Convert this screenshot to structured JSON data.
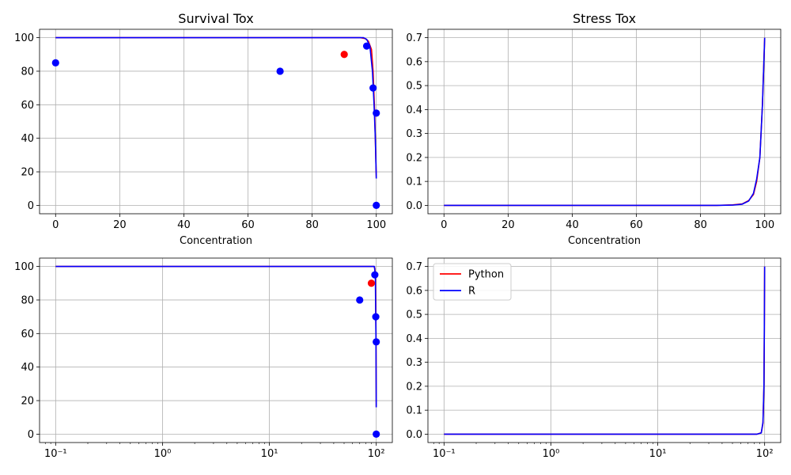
{
  "chart_data": [
    {
      "type": "scatter",
      "title": "Survival Tox",
      "xlabel": "Concentration",
      "ylabel": "",
      "xscale": "linear",
      "xlim": [
        -5,
        105
      ],
      "ylim": [
        -5,
        105
      ],
      "xticks": [
        0,
        20,
        40,
        60,
        80,
        100
      ],
      "xtick_labels": [
        "0",
        "20",
        "40",
        "60",
        "80",
        "100"
      ],
      "yticks": [
        0,
        20,
        40,
        60,
        80,
        100
      ],
      "ytick_labels": [
        "0",
        "20",
        "40",
        "60",
        "80",
        "100"
      ],
      "grid": true,
      "series": [
        {
          "color": "#ff0000",
          "kind": "scatter",
          "points": [
            [
              90,
              90
            ]
          ]
        },
        {
          "color": "#0000ff",
          "kind": "scatter",
          "points": [
            [
              0,
              85
            ],
            [
              70,
              80
            ],
            [
              97,
              95
            ],
            [
              99,
              70
            ],
            [
              100,
              55
            ],
            [
              100,
              0
            ]
          ]
        },
        {
          "color": "#ff0000",
          "kind": "line",
          "points": [
            [
              0,
              100
            ],
            [
              95,
              100
            ],
            [
              96.5,
              99.5
            ],
            [
              97.5,
              98
            ],
            [
              98.5,
              93
            ],
            [
              99,
              80
            ],
            [
              99.5,
              55
            ],
            [
              100,
              16
            ]
          ]
        },
        {
          "color": "#0000ff",
          "kind": "line",
          "points": [
            [
              0,
              100
            ],
            [
              96,
              100
            ],
            [
              97,
              99
            ],
            [
              98,
              95
            ],
            [
              98.8,
              80
            ],
            [
              99.3,
              60
            ],
            [
              99.7,
              40
            ],
            [
              100,
              16
            ]
          ]
        }
      ]
    },
    {
      "type": "line",
      "title": "Stress Tox",
      "xlabel": "Concentration",
      "ylabel": "",
      "xscale": "linear",
      "xlim": [
        -5,
        105
      ],
      "ylim": [
        -0.035,
        0.735
      ],
      "xticks": [
        0,
        20,
        40,
        60,
        80,
        100
      ],
      "xtick_labels": [
        "0",
        "20",
        "40",
        "60",
        "80",
        "100"
      ],
      "yticks": [
        0,
        0.1,
        0.2,
        0.3,
        0.4,
        0.5,
        0.6,
        0.7
      ],
      "ytick_labels": [
        "0.0",
        "0.1",
        "0.2",
        "0.3",
        "0.4",
        "0.5",
        "0.6",
        "0.7"
      ],
      "grid": true,
      "series": [
        {
          "color": "#ff0000",
          "kind": "line",
          "points": [
            [
              0,
              0
            ],
            [
              85,
              0
            ],
            [
              90,
              0.002
            ],
            [
              93,
              0.006
            ],
            [
              95,
              0.02
            ],
            [
              96.5,
              0.045
            ],
            [
              97.5,
              0.1
            ],
            [
              98.5,
              0.2
            ],
            [
              99.3,
              0.42
            ],
            [
              100,
              0.7
            ]
          ]
        },
        {
          "color": "#0000ff",
          "kind": "line",
          "points": [
            [
              0,
              0
            ],
            [
              85,
              0
            ],
            [
              90,
              0.001
            ],
            [
              93,
              0.005
            ],
            [
              95,
              0.018
            ],
            [
              96.5,
              0.05
            ],
            [
              97.5,
              0.11
            ],
            [
              98.5,
              0.2
            ],
            [
              99.3,
              0.42
            ],
            [
              100,
              0.7
            ]
          ]
        }
      ]
    },
    {
      "type": "scatter",
      "title": "",
      "xlabel": "",
      "ylabel": "",
      "xscale": "log",
      "xlim": [
        0.0707,
        141.4
      ],
      "ylim": [
        -5,
        105
      ],
      "xticks": [
        0.1,
        1,
        10,
        100
      ],
      "xtick_labels": [
        "10⁻¹",
        "10⁰",
        "10¹",
        "10²"
      ],
      "yticks": [
        0,
        20,
        40,
        60,
        80,
        100
      ],
      "ytick_labels": [
        "0",
        "20",
        "40",
        "60",
        "80",
        "100"
      ],
      "grid": true,
      "series": [
        {
          "color": "#ff0000",
          "kind": "scatter",
          "points": [
            [
              90,
              90
            ]
          ]
        },
        {
          "color": "#0000ff",
          "kind": "scatter",
          "points": [
            [
              70,
              80
            ],
            [
              97,
              95
            ],
            [
              99,
              70
            ],
            [
              100,
              55
            ],
            [
              100,
              0
            ]
          ]
        },
        {
          "color": "#ff0000",
          "kind": "line",
          "points": [
            [
              0.1,
              100
            ],
            [
              95,
              100
            ],
            [
              97,
              99
            ],
            [
              98.5,
              93
            ],
            [
              99.5,
              55
            ],
            [
              100,
              16
            ]
          ]
        },
        {
          "color": "#0000ff",
          "kind": "line",
          "points": [
            [
              0.1,
              100
            ],
            [
              96,
              100
            ],
            [
              98,
              95
            ],
            [
              99.3,
              60
            ],
            [
              100,
              16
            ]
          ]
        }
      ]
    },
    {
      "type": "line",
      "title": "",
      "xlabel": "",
      "ylabel": "",
      "xscale": "log",
      "xlim": [
        0.0707,
        141.4
      ],
      "ylim": [
        -0.035,
        0.735
      ],
      "xticks": [
        0.1,
        1,
        10,
        100
      ],
      "xtick_labels": [
        "10⁻¹",
        "10⁰",
        "10¹",
        "10²"
      ],
      "yticks": [
        0,
        0.1,
        0.2,
        0.3,
        0.4,
        0.5,
        0.6,
        0.7
      ],
      "ytick_labels": [
        "0.0",
        "0.1",
        "0.2",
        "0.3",
        "0.4",
        "0.5",
        "0.6",
        "0.7"
      ],
      "grid": true,
      "legend": {
        "placement": "upper-left",
        "entries": [
          {
            "label": "Python",
            "color": "#ff0000"
          },
          {
            "label": "R",
            "color": "#0000ff"
          }
        ]
      },
      "series": [
        {
          "color": "#ff0000",
          "kind": "line",
          "points": [
            [
              0.1,
              0
            ],
            [
              85,
              0
            ],
            [
              93,
              0.006
            ],
            [
              96.5,
              0.045
            ],
            [
              98.5,
              0.2
            ],
            [
              99.3,
              0.42
            ],
            [
              100,
              0.7
            ]
          ]
        },
        {
          "color": "#0000ff",
          "kind": "line",
          "points": [
            [
              0.1,
              0
            ],
            [
              85,
              0
            ],
            [
              93,
              0.005
            ],
            [
              96.5,
              0.05
            ],
            [
              98.5,
              0.2
            ],
            [
              99.3,
              0.42
            ],
            [
              100,
              0.7
            ]
          ]
        }
      ]
    }
  ]
}
